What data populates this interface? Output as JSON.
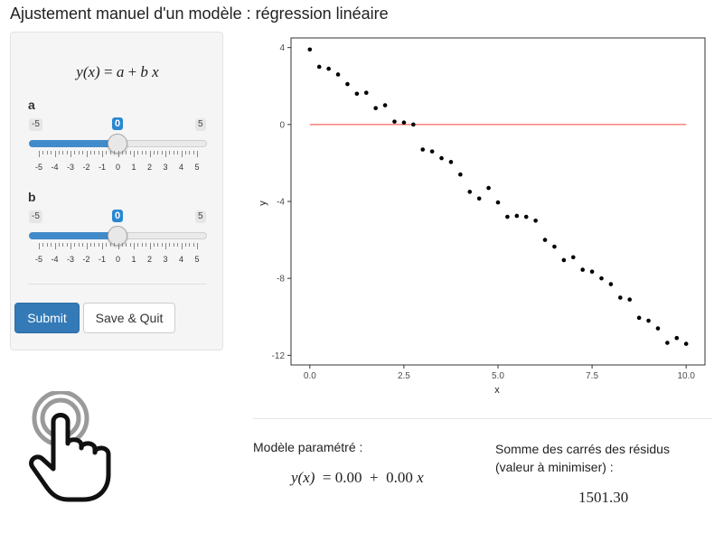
{
  "page": {
    "title": "Ajustement manuel d'un modèle : régression linéaire"
  },
  "sidebar": {
    "formula": {
      "lhs": "y(x)",
      "eq": " = ",
      "a": "a",
      "plus": " + ",
      "b": "b",
      "x": " x"
    },
    "sliders": [
      {
        "label": "a",
        "min": "-5",
        "max": "5",
        "value": "0",
        "ticks": [
          "-5",
          "-4",
          "-3",
          "-2",
          "-1",
          "0",
          "1",
          "2",
          "3",
          "4",
          "5"
        ]
      },
      {
        "label": "b",
        "min": "-5",
        "max": "5",
        "value": "0",
        "ticks": [
          "-5",
          "-4",
          "-3",
          "-2",
          "-1",
          "0",
          "1",
          "2",
          "3",
          "4",
          "5"
        ]
      }
    ],
    "buttons": {
      "submit": "Submit",
      "save_quit": "Save & Quit"
    }
  },
  "model": {
    "label": "Modèle paramétré :",
    "lhs": "y(x)",
    "a_value": "0.00",
    "b_value": "0.00",
    "x": "x",
    "ssr_label_line1": "Somme des carrés des résidus",
    "ssr_label_line2": "(valeur à minimiser) :",
    "ssr_value": "1501.30"
  },
  "colors": {
    "accent": "#337ab7",
    "slider_fill": "#428bca",
    "fit_line": "#f8766d"
  },
  "chart_data": {
    "type": "scatter",
    "xlabel": "x",
    "ylabel": "y",
    "xlim": [
      -0.5,
      10.5
    ],
    "ylim": [
      -12.5,
      4.5
    ],
    "xticks": [
      0,
      2.5,
      5,
      7.5,
      10
    ],
    "xtick_labels": [
      "0.0",
      "2.5",
      "5.0",
      "7.5",
      "10.0"
    ],
    "yticks": [
      4,
      0,
      -4,
      -8,
      -12
    ],
    "ytick_labels": [
      "4",
      "0",
      "-4",
      "-8",
      "-12"
    ],
    "grid": false,
    "points": {
      "x": [
        0,
        0.25,
        0.5,
        0.75,
        1,
        1.25,
        1.5,
        1.75,
        2,
        2.25,
        2.5,
        2.75,
        3,
        3.25,
        3.5,
        3.75,
        4,
        4.25,
        4.5,
        4.75,
        5,
        5.25,
        5.5,
        5.75,
        6,
        6.25,
        6.5,
        6.75,
        7,
        7.25,
        7.5,
        7.75,
        8,
        8.25,
        8.5,
        8.75,
        9,
        9.25,
        9.5,
        9.75,
        10
      ],
      "y": [
        3.9,
        3.0,
        2.9,
        2.6,
        2.1,
        1.6,
        1.65,
        0.85,
        1.0,
        0.15,
        0.1,
        0.0,
        -1.3,
        -1.4,
        -1.75,
        -1.95,
        -2.6,
        -3.5,
        -3.85,
        -3.3,
        -4.05,
        -4.8,
        -4.75,
        -4.8,
        -5.0,
        -6.0,
        -6.35,
        -7.05,
        -6.9,
        -7.55,
        -7.65,
        -8.0,
        -8.3,
        -9.0,
        -9.1,
        -10.05,
        -10.2,
        -10.6,
        -11.35,
        -11.1,
        -11.4
      ]
    },
    "fit_line": {
      "a": 0,
      "b": 0,
      "x_range": [
        0,
        10
      ]
    }
  }
}
